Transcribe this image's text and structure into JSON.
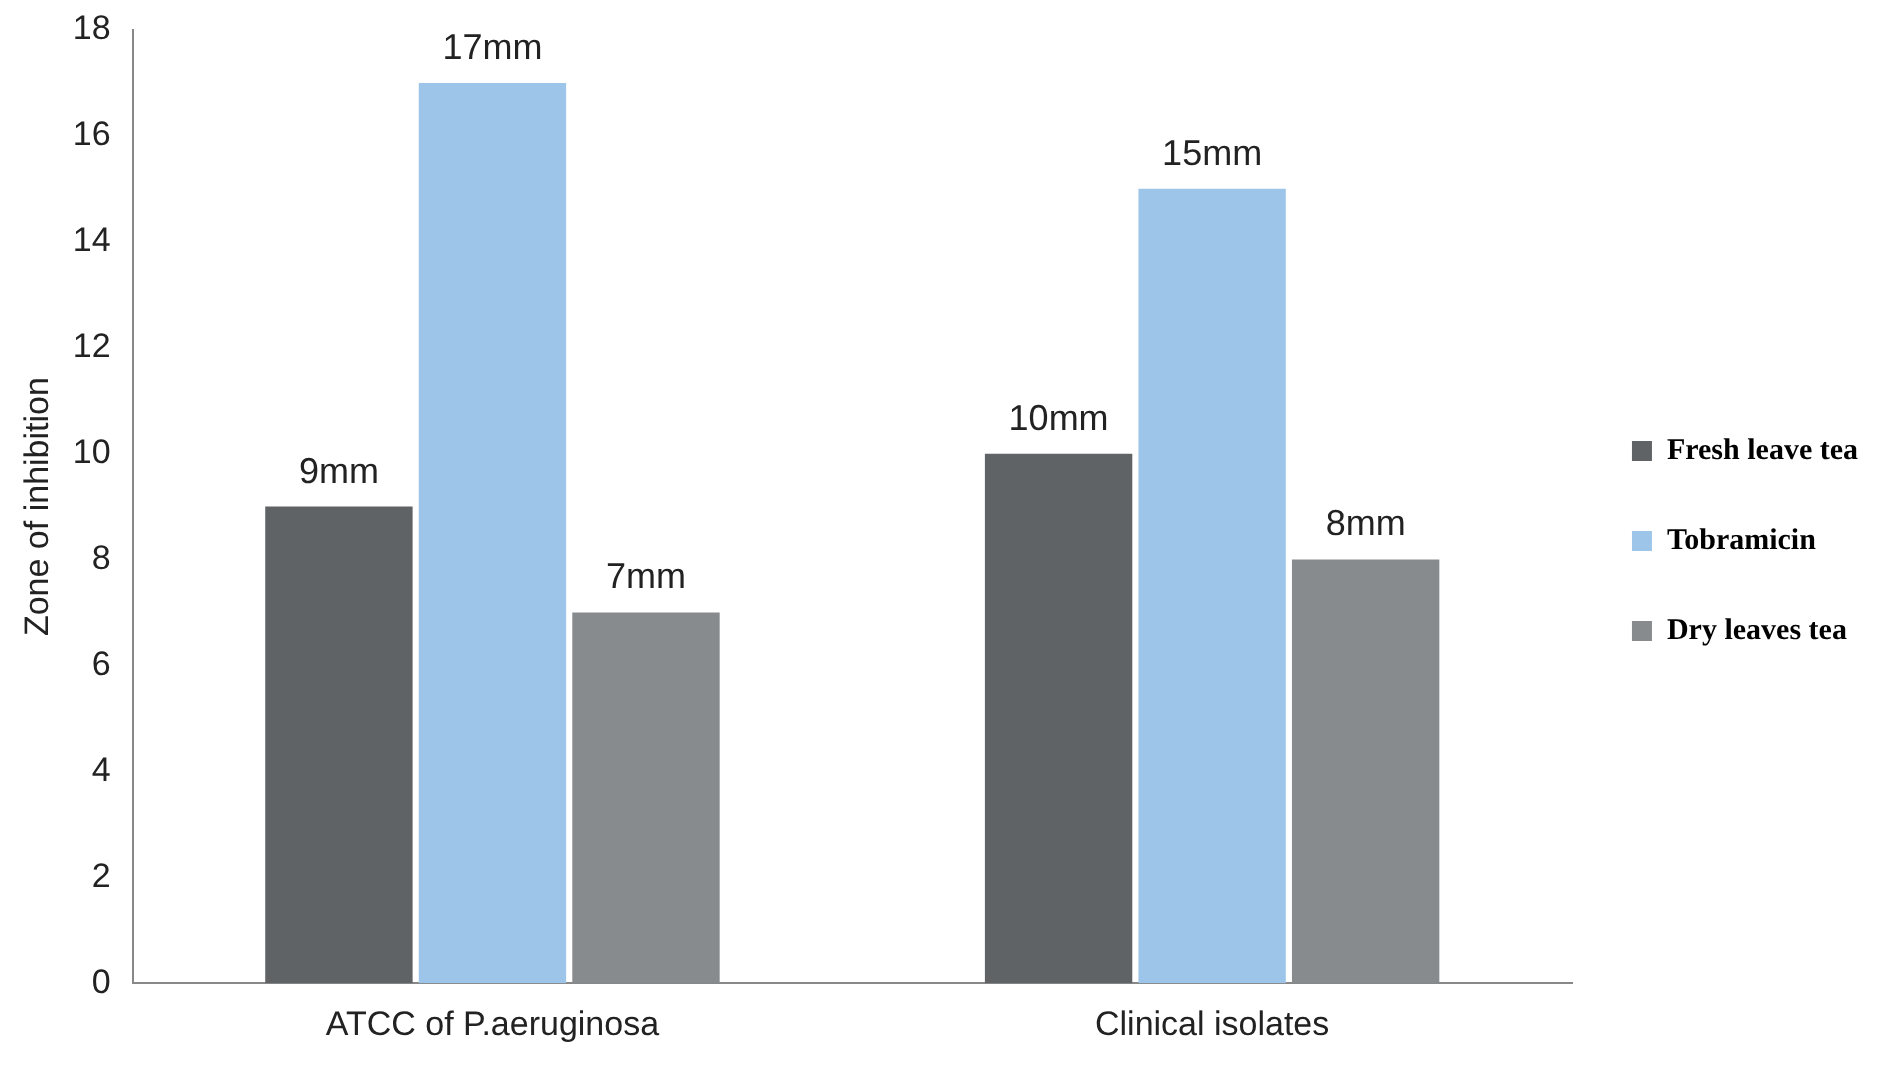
{
  "chart_data": {
    "type": "bar",
    "ylabel": "Zone of inhibition",
    "categories": [
      "ATCC of P.aeruginosa",
      "Clinical isolates"
    ],
    "series": [
      {
        "name": "Fresh leave tea",
        "color": "#5f6366",
        "values": [
          9,
          10
        ],
        "value_labels": [
          "9mm",
          "10mm"
        ]
      },
      {
        "name": "Tobramicin",
        "color": "#9dc5ea",
        "values": [
          17,
          15
        ],
        "value_labels": [
          "17mm",
          "15mm"
        ]
      },
      {
        "name": "Dry leaves tea",
        "color": "#888b8e",
        "values": [
          7,
          8
        ],
        "value_labels": [
          "7mm",
          "8mm"
        ]
      }
    ],
    "ylim": [
      0,
      18
    ],
    "yticks": [
      0,
      2,
      4,
      6,
      8,
      10,
      12,
      14,
      16,
      18
    ],
    "grid": false,
    "legend": "right"
  }
}
